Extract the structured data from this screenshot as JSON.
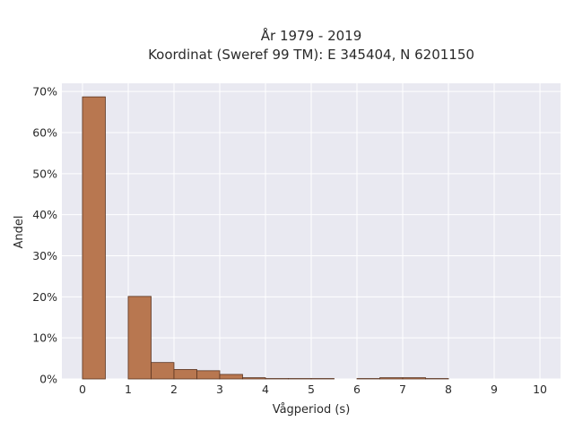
{
  "colors": {
    "plot_background": "#e9e9f1",
    "gridline": "#ffffff",
    "bar_fill": "#b87750",
    "bar_edge": "#5a3420"
  },
  "chart_data": {
    "type": "bar",
    "title_line1": "År 1979 - 2019",
    "title_line2": "Koordinat (Sweref 99 TM): E 345404, N 6201150",
    "xlabel": "Vågperiod (s)",
    "ylabel": "Andel",
    "xlim": [
      -0.45,
      10.45
    ],
    "ylim": [
      0,
      0.72
    ],
    "x_ticks": [
      0,
      1,
      2,
      3,
      4,
      5,
      6,
      7,
      8,
      9,
      10
    ],
    "x_tick_labels": [
      "0",
      "1",
      "2",
      "3",
      "4",
      "5",
      "6",
      "7",
      "8",
      "9",
      "10"
    ],
    "y_ticks": [
      0,
      0.1,
      0.2,
      0.3,
      0.4,
      0.5,
      0.6,
      0.7
    ],
    "y_tick_labels": [
      "0%",
      "10%",
      "20%",
      "30%",
      "40%",
      "50%",
      "60%",
      "70%"
    ],
    "grid": true,
    "bin_width": 0.5,
    "bin_starts": [
      0,
      0.5,
      1,
      1.5,
      2,
      2.5,
      3,
      3.5,
      4,
      4.5,
      5,
      5.5,
      6,
      6.5,
      7,
      7.5,
      8,
      8.5,
      9,
      9.5
    ],
    "values": [
      0.687,
      0,
      0.201,
      0.04,
      0.023,
      0.02,
      0.011,
      0.003,
      0.001,
      0.001,
      0.001,
      0,
      0.001,
      0.003,
      0.003,
      0.001,
      0,
      0,
      0,
      0
    ]
  }
}
